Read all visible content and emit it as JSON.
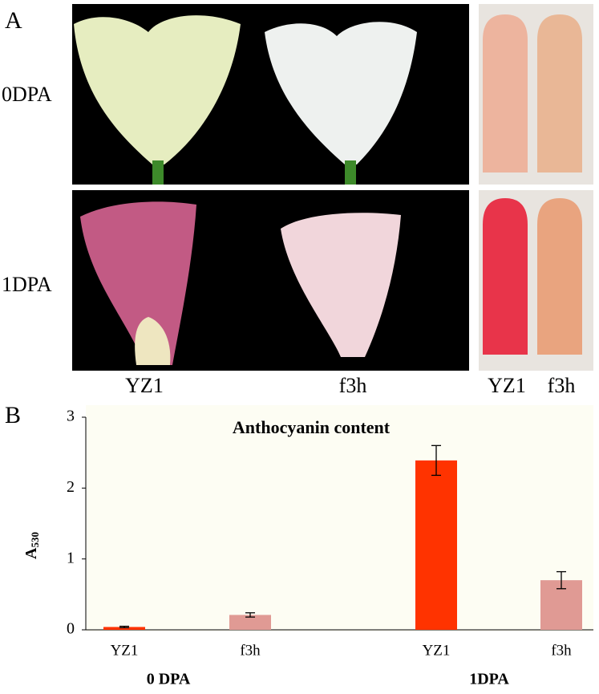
{
  "panel_labels": [
    "A",
    "B"
  ],
  "photo_panel": {
    "row_labels": [
      "0DPA",
      "1DPA"
    ],
    "column_labels": [
      "YZ1",
      "f3h"
    ],
    "tube_labels": [
      "YZ1",
      "f3h"
    ]
  },
  "chart_data": {
    "type": "bar",
    "title": "Anthocyanin content",
    "ylabel": "A",
    "ylabel_subscript": "530",
    "categories": [
      "YZ1",
      "f3h",
      "YZ1",
      "f3h"
    ],
    "groups": [
      "0 DPA",
      "1DPA"
    ],
    "values": [
      0.04,
      0.21,
      2.39,
      0.7
    ],
    "errors": [
      0.01,
      0.03,
      0.21,
      0.12
    ],
    "colors": [
      "#ff3300",
      "#e09a94",
      "#ff3300",
      "#e09a94"
    ],
    "ylim": [
      0,
      3
    ],
    "yticks": [
      0,
      1,
      2,
      3
    ],
    "grid": false
  }
}
